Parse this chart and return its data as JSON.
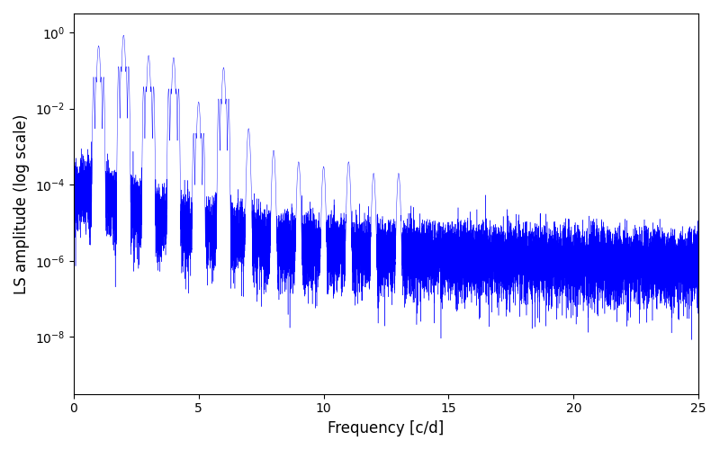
{
  "xlabel": "Frequency [c/d]",
  "ylabel": "LS amplitude (log scale)",
  "line_color": "#0000ff",
  "xlim": [
    0,
    25
  ],
  "ylim_log": [
    -9.5,
    0.5
  ],
  "background_color": "#ffffff",
  "seed": 1234,
  "n_points": 25000,
  "freq_max": 25.0,
  "xlabel_fontsize": 12,
  "ylabel_fontsize": 12,
  "linewidth": 0.3
}
